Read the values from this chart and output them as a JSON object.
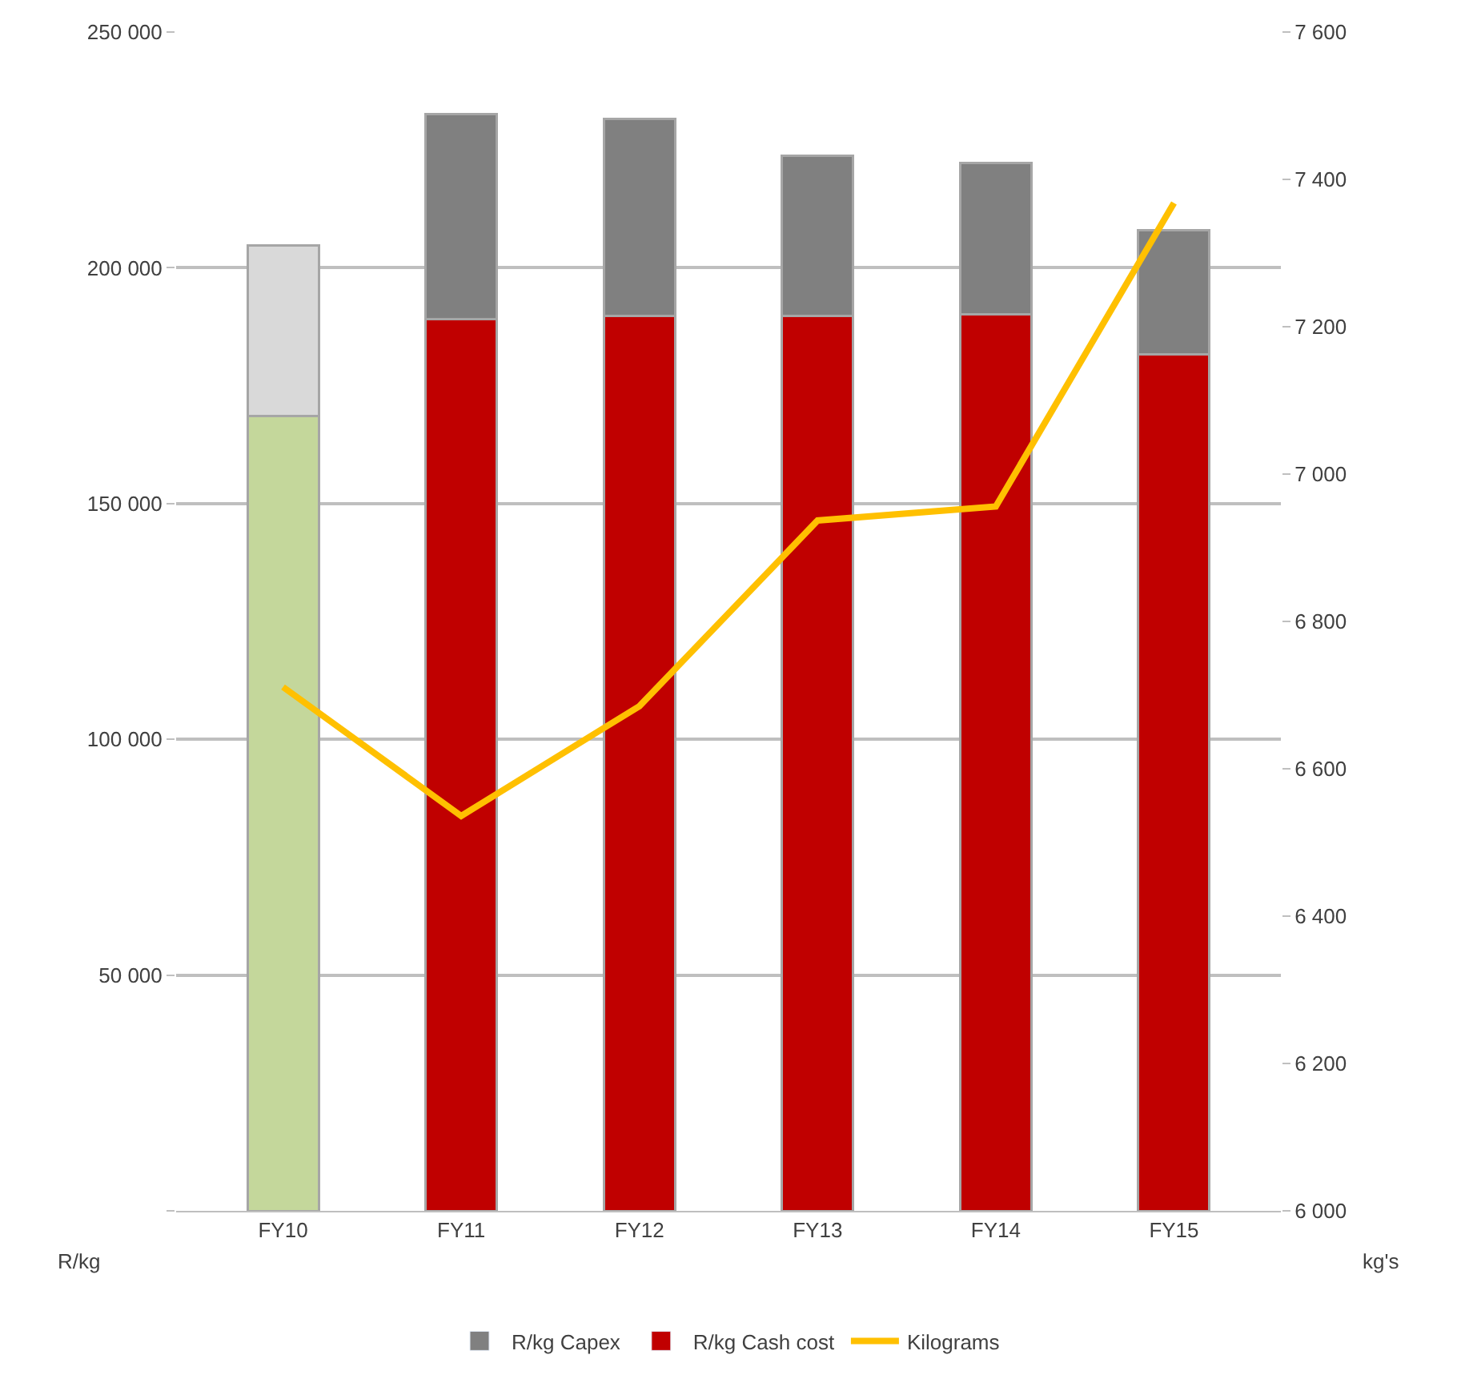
{
  "chart_data": {
    "type": "bar",
    "stacked": true,
    "categories": [
      "FY10",
      "FY11",
      "FY12",
      "FY13",
      "FY14",
      "FY15"
    ],
    "series": [
      {
        "name": "R/kg Cash cost",
        "color": "#c00000",
        "colors": [
          "#c4d79b",
          "#c00000",
          "#c00000",
          "#c00000",
          "#c00000",
          "#c00000"
        ],
        "values": [
          168500,
          189100,
          189800,
          189800,
          190200,
          181600
        ]
      },
      {
        "name": "R/kg Capex",
        "color": "#808080",
        "colors": [
          "#d9d9d9",
          "#808080",
          "#808080",
          "#808080",
          "#808080",
          "#808080"
        ],
        "values": [
          36300,
          43500,
          41700,
          33900,
          32100,
          26300
        ]
      },
      {
        "name": "Kilograms",
        "type": "line",
        "axis": "y2",
        "color": "#ffc000",
        "values": [
          6711,
          6536,
          6685,
          6937,
          6956,
          7368
        ]
      }
    ],
    "ylabel": "R/kg",
    "y2label": "kg's",
    "ylim": [
      0,
      250000
    ],
    "yticks": [
      {
        "value": 0,
        "label": null
      },
      {
        "value": 50000,
        "label": "50 000"
      },
      {
        "value": 100000,
        "label": "100 000"
      },
      {
        "value": 150000,
        "label": "150 000"
      },
      {
        "value": 200000,
        "label": "200 000"
      },
      {
        "value": 250000,
        "label": "250 000"
      }
    ],
    "y2lim": [
      6000,
      7600
    ],
    "y2ticks": [
      {
        "value": 6000,
        "label": "6 000"
      },
      {
        "value": 6200,
        "label": "6 200"
      },
      {
        "value": 6400,
        "label": "6 400"
      },
      {
        "value": 6600,
        "label": "6 600"
      },
      {
        "value": 6800,
        "label": "6 800"
      },
      {
        "value": 7000,
        "label": "7 000"
      },
      {
        "value": 7200,
        "label": "7 200"
      },
      {
        "value": 7400,
        "label": "7 400"
      },
      {
        "value": 7600,
        "label": "7 600"
      }
    ],
    "grid": "y",
    "legend": "bottom",
    "marker": "none",
    "line_style": "solid"
  }
}
